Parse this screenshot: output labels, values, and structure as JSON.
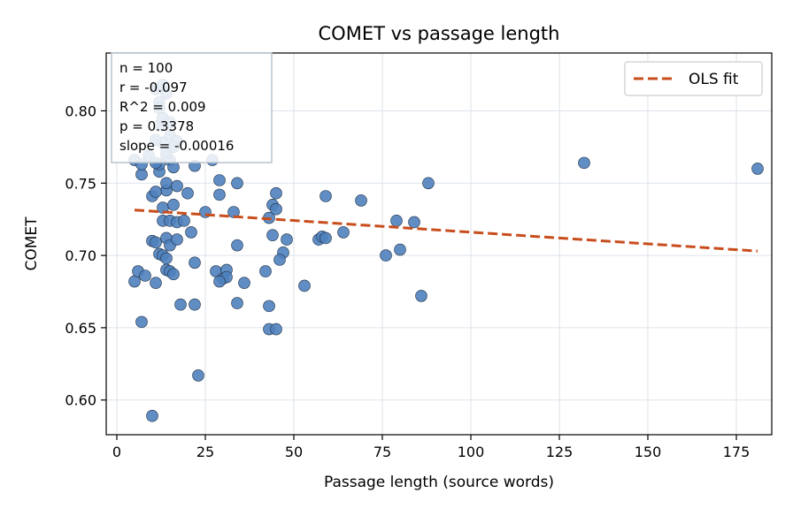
{
  "chart_data": {
    "type": "scatter",
    "title": "COMET vs passage length",
    "xlabel": "Passage length (source words)",
    "ylabel": "COMET",
    "xlim": [
      -3,
      185
    ],
    "ylim": [
      0.576,
      0.84
    ],
    "xticks": [
      0,
      25,
      50,
      75,
      100,
      125,
      150,
      175
    ],
    "yticks": [
      0.6,
      0.65,
      0.7,
      0.75,
      0.8
    ],
    "xtick_labels": [
      "0",
      "25",
      "50",
      "75",
      "100",
      "125",
      "150",
      "175"
    ],
    "ytick_labels": [
      "0.60",
      "0.65",
      "0.70",
      "0.75",
      "0.80"
    ],
    "grid": true,
    "legend_position": "top-right",
    "colors": {
      "points": "#4f81bd",
      "fit": "#c84d1c"
    },
    "stats_lines": [
      "n = 100",
      "r = -0.097",
      "R^2 = 0.009",
      "p = 0.3378",
      "slope = -0.00016"
    ],
    "fit": {
      "name": "OLS fit",
      "x": [
        5,
        181
      ],
      "y": [
        0.7314,
        0.703
      ]
    },
    "points": [
      [
        10,
        0.589
      ],
      [
        23,
        0.617
      ],
      [
        7,
        0.654
      ],
      [
        5,
        0.682
      ],
      [
        6,
        0.689
      ],
      [
        8,
        0.686
      ],
      [
        11,
        0.681
      ],
      [
        10,
        0.71
      ],
      [
        11,
        0.709
      ],
      [
        12,
        0.701
      ],
      [
        13,
        0.7
      ],
      [
        14,
        0.698
      ],
      [
        14,
        0.69
      ],
      [
        15,
        0.689
      ],
      [
        16,
        0.687
      ],
      [
        14,
        0.712
      ],
      [
        15,
        0.707
      ],
      [
        17,
        0.711
      ],
      [
        13,
        0.724
      ],
      [
        15,
        0.724
      ],
      [
        17,
        0.723
      ],
      [
        19,
        0.724
      ],
      [
        21,
        0.716
      ],
      [
        22,
        0.695
      ],
      [
        18,
        0.666
      ],
      [
        22,
        0.666
      ],
      [
        13,
        0.733
      ],
      [
        16,
        0.735
      ],
      [
        14,
        0.745
      ],
      [
        20,
        0.743
      ],
      [
        25,
        0.73
      ],
      [
        10,
        0.741
      ],
      [
        11,
        0.744
      ],
      [
        14,
        0.75
      ],
      [
        17,
        0.748
      ],
      [
        12,
        0.758
      ],
      [
        12,
        0.763
      ],
      [
        7,
        0.756
      ],
      [
        5,
        0.766
      ],
      [
        7,
        0.763
      ],
      [
        9,
        0.769
      ],
      [
        11,
        0.764
      ],
      [
        14,
        0.769
      ],
      [
        15,
        0.766
      ],
      [
        16,
        0.761
      ],
      [
        22,
        0.762
      ],
      [
        27,
        0.766
      ],
      [
        29,
        0.752
      ],
      [
        29,
        0.742
      ],
      [
        34,
        0.75
      ],
      [
        33,
        0.73
      ],
      [
        34,
        0.707
      ],
      [
        28,
        0.689
      ],
      [
        30,
        0.684
      ],
      [
        31,
        0.69
      ],
      [
        31,
        0.685
      ],
      [
        29,
        0.682
      ],
      [
        36,
        0.681
      ],
      [
        34,
        0.667
      ],
      [
        42,
        0.689
      ],
      [
        43,
        0.726
      ],
      [
        44,
        0.735
      ],
      [
        45,
        0.732
      ],
      [
        45,
        0.743
      ],
      [
        44,
        0.714
      ],
      [
        47,
        0.702
      ],
      [
        46,
        0.697
      ],
      [
        48,
        0.711
      ],
      [
        43,
        0.665
      ],
      [
        43,
        0.649
      ],
      [
        45,
        0.649
      ],
      [
        53,
        0.679
      ],
      [
        57,
        0.711
      ],
      [
        58,
        0.713
      ],
      [
        59,
        0.712
      ],
      [
        59,
        0.741
      ],
      [
        64,
        0.716
      ],
      [
        69,
        0.738
      ],
      [
        76,
        0.7
      ],
      [
        79,
        0.724
      ],
      [
        80,
        0.704
      ],
      [
        84,
        0.723
      ],
      [
        86,
        0.672
      ],
      [
        88,
        0.75
      ],
      [
        132,
        0.764
      ],
      [
        181,
        0.76
      ],
      [
        13,
        0.778
      ],
      [
        15,
        0.783
      ],
      [
        17,
        0.779
      ],
      [
        12,
        0.79
      ],
      [
        13,
        0.795
      ],
      [
        14,
        0.772
      ],
      [
        16,
        0.775
      ],
      [
        12,
        0.806
      ],
      [
        14,
        0.812
      ],
      [
        11,
        0.815
      ],
      [
        13,
        0.818
      ],
      [
        12,
        0.802
      ],
      [
        15,
        0.792
      ],
      [
        11,
        0.78
      ]
    ]
  }
}
